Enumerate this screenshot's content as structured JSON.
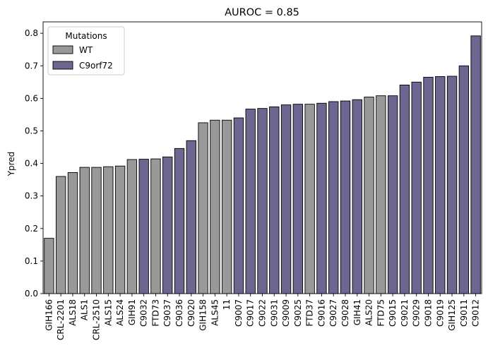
{
  "chart_data": {
    "type": "bar",
    "title": "AUROC = 0.85",
    "xlabel": "",
    "ylabel": "Ypred",
    "ylim": [
      0,
      0.835
    ],
    "yticks": [
      0.0,
      0.1,
      0.2,
      0.3,
      0.4,
      0.5,
      0.6,
      0.7,
      0.8
    ],
    "grid": false,
    "legend": {
      "title": "Mutations",
      "placement": "top-left",
      "entries": [
        {
          "name": "WT",
          "color": "#999999"
        },
        {
          "name": "C9orf72",
          "color": "#6b6791"
        }
      ]
    },
    "categories": [
      "GIH166",
      "CRL-2201",
      "ALS18",
      "ALS1",
      "CRL-2510",
      "ALS15",
      "ALS24",
      "GIH91",
      "C9032",
      "FTD73",
      "C9037",
      "C9036",
      "C9020",
      "GIH158",
      "ALS45",
      "11",
      "C9007",
      "C9017",
      "C9022",
      "C9031",
      "C9009",
      "C9025",
      "FTD37",
      "C9016",
      "C9027",
      "C9028",
      "GIH41",
      "ALS20",
      "FTD75",
      "C9015",
      "C9021",
      "C9029",
      "C9018",
      "C9019",
      "GIH125",
      "C9011",
      "C9012"
    ],
    "values": [
      0.17,
      0.36,
      0.372,
      0.388,
      0.388,
      0.39,
      0.392,
      0.412,
      0.413,
      0.414,
      0.42,
      0.446,
      0.47,
      0.525,
      0.533,
      0.533,
      0.54,
      0.567,
      0.569,
      0.574,
      0.58,
      0.582,
      0.582,
      0.585,
      0.59,
      0.592,
      0.596,
      0.604,
      0.608,
      0.608,
      0.641,
      0.65,
      0.665,
      0.667,
      0.668,
      0.7,
      0.792
    ],
    "groups": [
      "WT",
      "WT",
      "WT",
      "WT",
      "WT",
      "WT",
      "WT",
      "WT",
      "C9orf72",
      "WT",
      "C9orf72",
      "C9orf72",
      "C9orf72",
      "WT",
      "WT",
      "WT",
      "C9orf72",
      "C9orf72",
      "C9orf72",
      "C9orf72",
      "C9orf72",
      "C9orf72",
      "WT",
      "C9orf72",
      "C9orf72",
      "C9orf72",
      "C9orf72",
      "WT",
      "WT",
      "C9orf72",
      "C9orf72",
      "C9orf72",
      "C9orf72",
      "C9orf72",
      "C9orf72",
      "C9orf72",
      "C9orf72"
    ]
  }
}
